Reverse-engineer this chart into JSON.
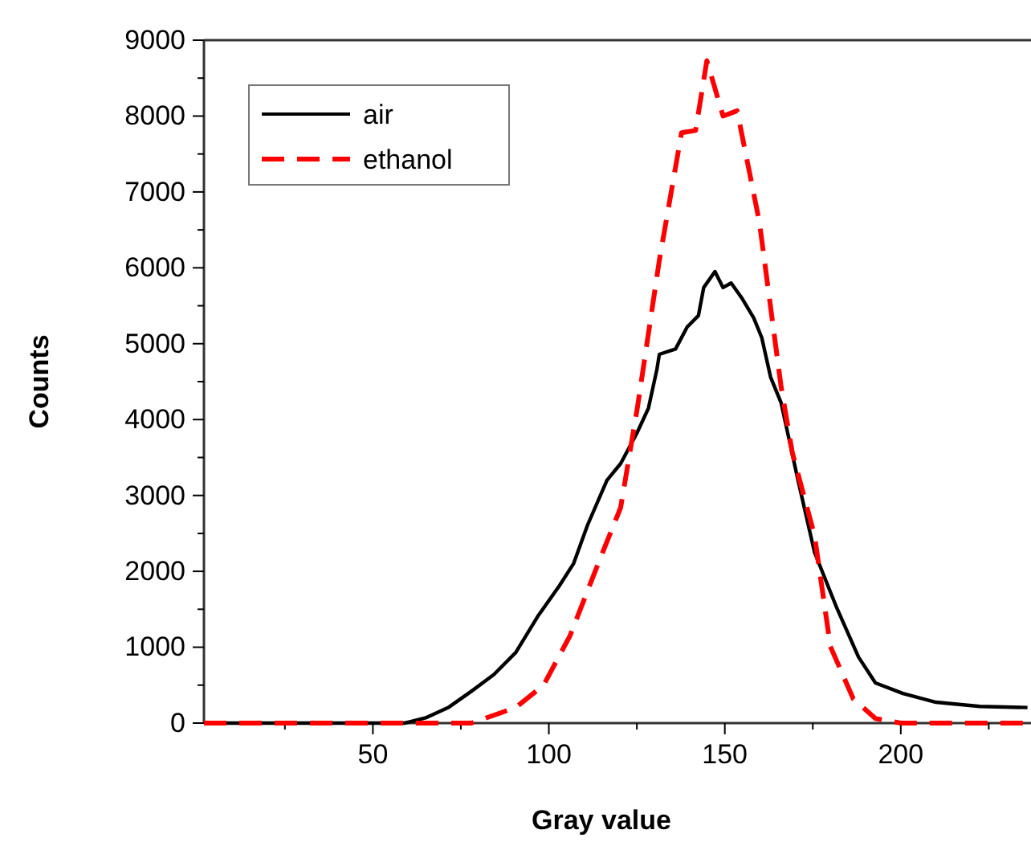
{
  "chart_data": {
    "type": "line",
    "xlabel": "Gray value",
    "ylabel": "Counts",
    "xlim": [
      2,
      237
    ],
    "ylim": [
      0,
      9000
    ],
    "xticks": [
      {
        "value": 25,
        "label": null
      },
      50,
      {
        "value": 75,
        "label": null
      },
      100,
      {
        "value": 125,
        "label": null
      },
      150,
      {
        "value": 175,
        "label": null
      },
      200,
      {
        "value": 225,
        "label": null
      }
    ],
    "yticks": [
      0,
      {
        "value": 500,
        "label": null
      },
      1000,
      {
        "value": 1500,
        "label": null
      },
      2000,
      {
        "value": 2500,
        "label": null
      },
      3000,
      {
        "value": 3500,
        "label": null
      },
      4000,
      {
        "value": 4500,
        "label": null
      },
      5000,
      {
        "value": 5500,
        "label": null
      },
      6000,
      {
        "value": 6500,
        "label": null
      },
      7000,
      {
        "value": 7500,
        "label": null
      },
      8000,
      {
        "value": 8500,
        "label": null
      },
      9000
    ],
    "legend": "top left",
    "grid": false,
    "series": [
      {
        "name": "air",
        "color": "#000000",
        "line_style": "solid",
        "x": [
          2,
          59,
          65,
          71.6,
          78,
          84.4,
          90.6,
          96.9,
          103,
          107,
          111,
          116.5,
          120.4,
          125,
          128.3,
          130.7,
          131.4,
          136,
          139.3,
          142.5,
          144,
          147.2,
          149.5,
          151.8,
          155,
          158.2,
          160.5,
          163,
          166,
          170.8,
          175.5,
          181.8,
          188,
          192.8,
          200.6,
          210,
          222.5,
          236
        ],
        "values": [
          0,
          0,
          70,
          210,
          420,
          640,
          930,
          1410,
          1810,
          2100,
          2610,
          3200,
          3420,
          3820,
          4150,
          4660,
          4860,
          4930,
          5220,
          5370,
          5740,
          5950,
          5740,
          5800,
          5590,
          5340,
          5080,
          4560,
          4220,
          3200,
          2250,
          1520,
          870,
          530,
          390,
          275,
          220,
          205
        ]
      },
      {
        "name": "ethanol",
        "color": "#ff0000",
        "line_style": "dashed",
        "x": [
          2,
          78,
          90.6,
          98.5,
          106,
          114,
          120.4,
          125.2,
          131.4,
          137.7,
          141.7,
          144.9,
          149.5,
          153.5,
          159.8,
          166,
          169.2,
          175.5,
          180,
          186.5,
          192.8,
          200,
          236
        ],
        "values": [
          0,
          0,
          205,
          500,
          1150,
          2100,
          2840,
          4170,
          6100,
          7780,
          7810,
          8730,
          8000,
          8070,
          6610,
          4430,
          3560,
          2470,
          1010,
          320,
          60,
          0,
          0
        ]
      }
    ]
  }
}
